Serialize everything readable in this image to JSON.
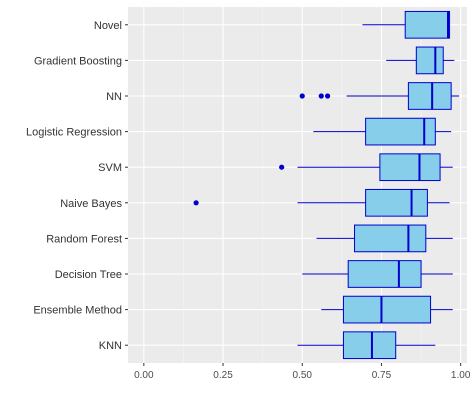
{
  "chart_data": {
    "type": "boxplot",
    "orientation": "horizontal",
    "title": "",
    "xlabel": "",
    "ylabel": "",
    "xlim": [
      -0.05,
      1.02
    ],
    "x_ticks": [
      0.0,
      0.25,
      0.5,
      0.75,
      1.0
    ],
    "x_tick_labels": [
      "0.00",
      "0.25",
      "0.50",
      "0.75",
      "1.00"
    ],
    "grid": true,
    "legend": "none",
    "colors": {
      "panel": "#ebebeb",
      "grid_major": "#ffffff",
      "grid_minor": "#f5f5f5",
      "box_fill": "#87ceeb",
      "box_stroke": "#0000cd",
      "outlier": "#0000cd",
      "tick": "#333333"
    },
    "categories": [
      {
        "name": "Novel",
        "whisker_low": 0.69,
        "q1": 0.825,
        "median": 0.96,
        "q3": 0.965,
        "whisker_high": 0.965,
        "outliers": []
      },
      {
        "name": "Gradient Boosting",
        "whisker_low": 0.765,
        "q1": 0.86,
        "median": 0.92,
        "q3": 0.945,
        "whisker_high": 0.98,
        "outliers": []
      },
      {
        "name": "NN",
        "whisker_low": 0.64,
        "q1": 0.835,
        "median": 0.91,
        "q3": 0.97,
        "whisker_high": 0.995,
        "outliers": [
          0.5,
          0.56,
          0.58
        ]
      },
      {
        "name": "Logistic Regression",
        "whisker_low": 0.535,
        "q1": 0.7,
        "median": 0.885,
        "q3": 0.92,
        "whisker_high": 0.97,
        "outliers": []
      },
      {
        "name": "SVM",
        "whisker_low": 0.485,
        "q1": 0.745,
        "median": 0.87,
        "q3": 0.935,
        "whisker_high": 0.975,
        "outliers": [
          0.435
        ]
      },
      {
        "name": "Naive Bayes",
        "whisker_low": 0.485,
        "q1": 0.7,
        "median": 0.845,
        "q3": 0.895,
        "whisker_high": 0.965,
        "outliers": [
          0.165
        ]
      },
      {
        "name": "Random Forest",
        "whisker_low": 0.545,
        "q1": 0.665,
        "median": 0.835,
        "q3": 0.89,
        "whisker_high": 0.975,
        "outliers": []
      },
      {
        "name": "Decision Tree",
        "whisker_low": 0.5,
        "q1": 0.645,
        "median": 0.805,
        "q3": 0.875,
        "whisker_high": 0.975,
        "outliers": []
      },
      {
        "name": "Ensemble Method",
        "whisker_low": 0.56,
        "q1": 0.63,
        "median": 0.75,
        "q3": 0.905,
        "whisker_high": 0.975,
        "outliers": []
      },
      {
        "name": "KNN",
        "whisker_low": 0.485,
        "q1": 0.63,
        "median": 0.72,
        "q3": 0.795,
        "whisker_high": 0.92,
        "outliers": []
      }
    ]
  }
}
